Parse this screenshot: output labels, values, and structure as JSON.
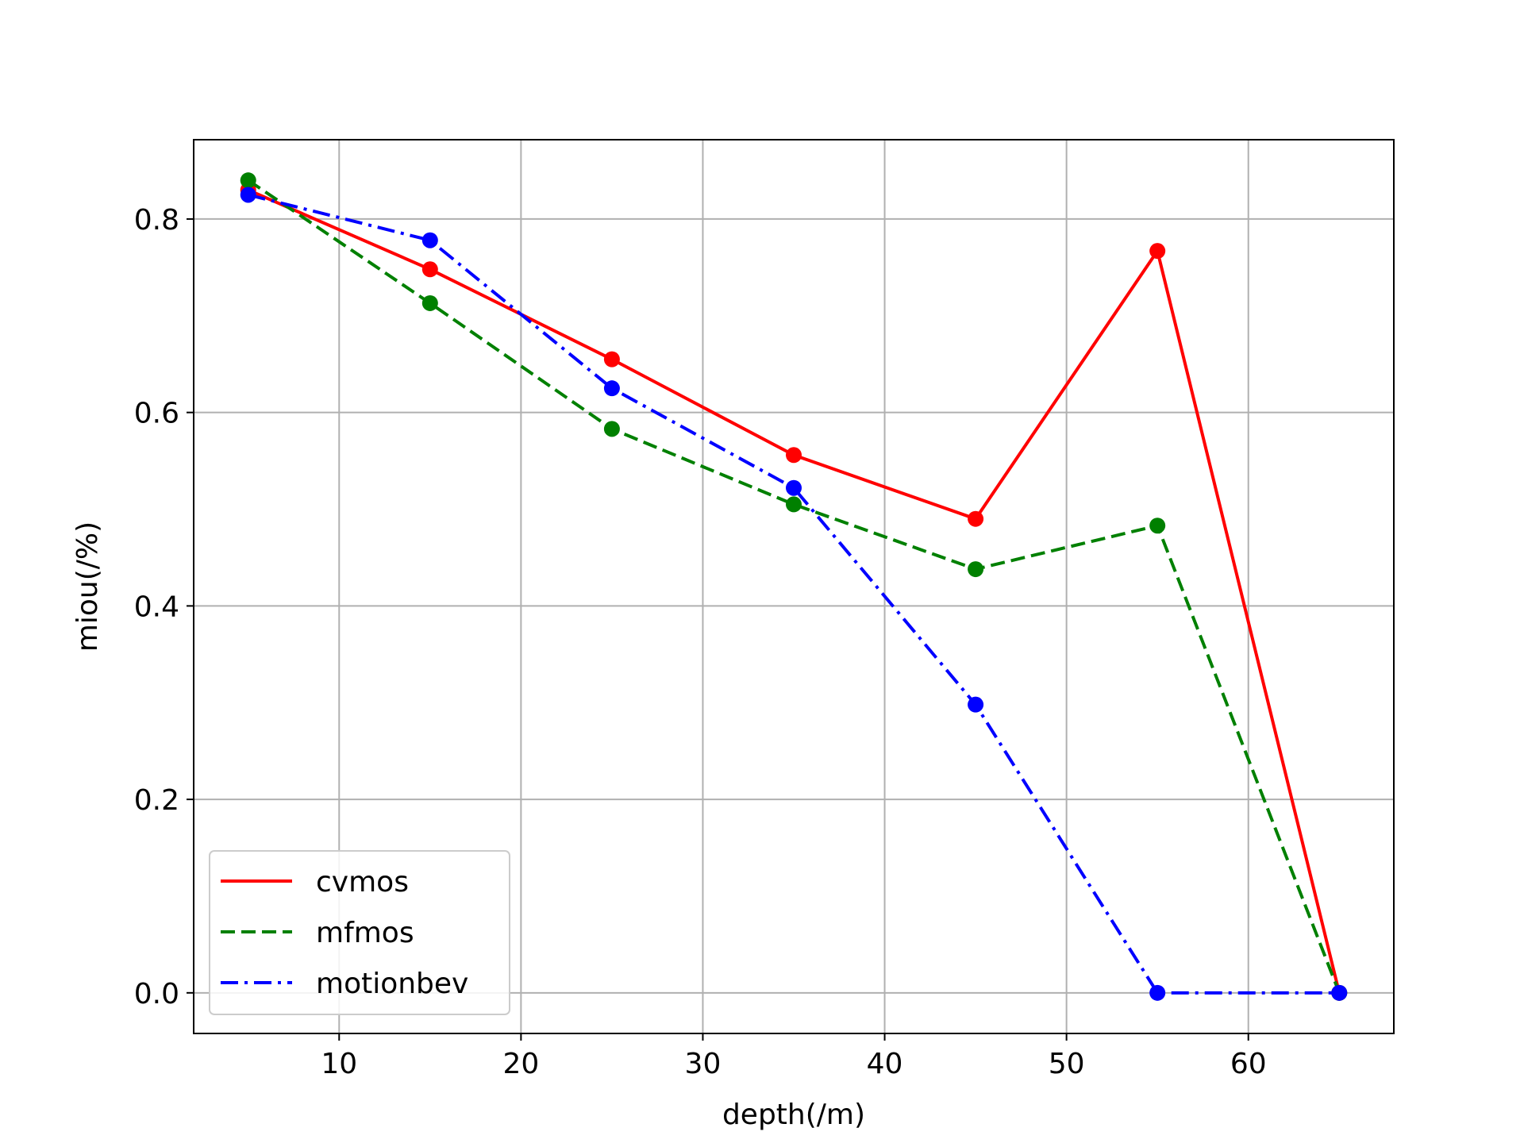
{
  "chart_data": {
    "type": "line",
    "title": "",
    "xlabel": "depth(/m)",
    "ylabel": "miou(/%)",
    "xlim": [
      2,
      68
    ],
    "ylim": [
      -0.042,
      0.882
    ],
    "xticks": [
      10,
      20,
      30,
      40,
      50,
      60
    ],
    "yticks": [
      0.0,
      0.2,
      0.4,
      0.6,
      0.8
    ],
    "xtick_labels": [
      "10",
      "20",
      "30",
      "40",
      "50",
      "60"
    ],
    "ytick_labels": [
      "0.0",
      "0.2",
      "0.4",
      "0.6",
      "0.8"
    ],
    "grid": true,
    "legend_position": "lower-left",
    "x": [
      5,
      15,
      25,
      35,
      45,
      55,
      65
    ],
    "series": [
      {
        "name": "cvmos",
        "color": "#ff0000",
        "linestyle": "solid",
        "values": [
          0.83,
          0.748,
          0.655,
          0.556,
          0.49,
          0.767,
          0.0
        ]
      },
      {
        "name": "mfmos",
        "color": "#008000",
        "linestyle": "dashed",
        "values": [
          0.84,
          0.713,
          0.583,
          0.505,
          0.438,
          0.483,
          0.0
        ]
      },
      {
        "name": "motionbev",
        "color": "#0000ff",
        "linestyle": "dashdot",
        "values": [
          0.825,
          0.778,
          0.625,
          0.522,
          0.298,
          0.0,
          0.0
        ]
      }
    ]
  }
}
